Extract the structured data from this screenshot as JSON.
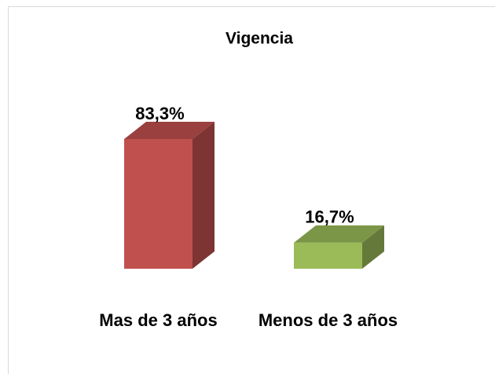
{
  "chart_data": {
    "type": "bar3d",
    "title": "Vigencia",
    "categories": [
      "Mas de 3 años",
      "Menos de 3 años"
    ],
    "values": [
      83.3,
      16.7
    ],
    "value_labels": [
      "83,3%",
      "16,7%"
    ],
    "colors": [
      "#c0504d",
      "#9bbb59"
    ]
  }
}
